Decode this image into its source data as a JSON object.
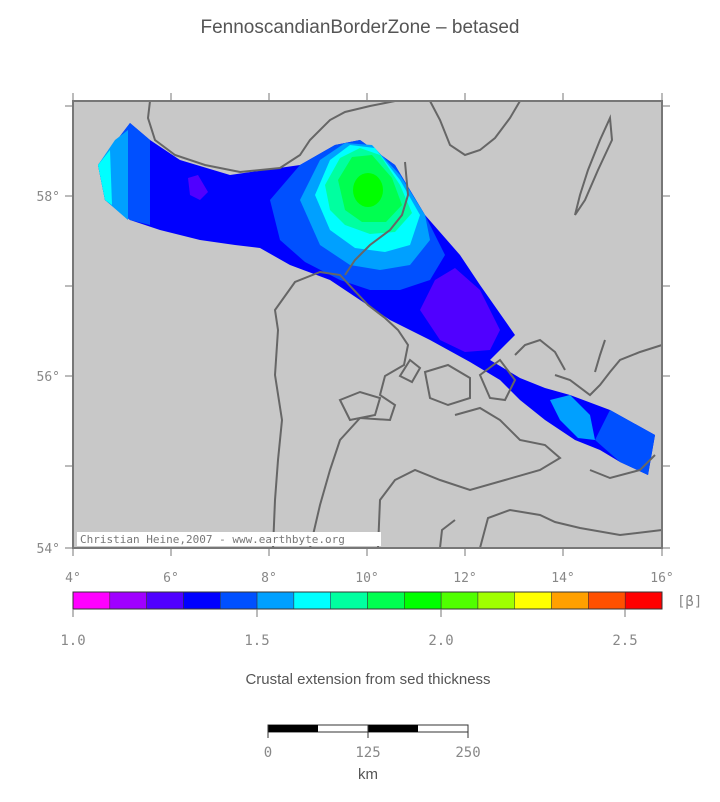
{
  "title": "FennoscandianBorderZone – betased",
  "subtitle": "Crustal extension from sed thickness",
  "map": {
    "lat_labels": [
      "58°",
      "56°",
      "54°"
    ],
    "lon_labels": [
      "4°",
      "6°",
      "8°",
      "10°",
      "12°",
      "14°",
      "16°"
    ],
    "credit": "Christian Heine,2007 - www.earthbyte.org",
    "background_color": "#c8c8c8",
    "coast_color": "#666666"
  },
  "colorbar": {
    "unit": "[β]",
    "tick_labels": [
      "1.0",
      "1.5",
      "2.0",
      "2.5"
    ],
    "colors": [
      "#ff00ff",
      "#a000ff",
      "#5000ff",
      "#0000ff",
      "#0050ff",
      "#00a0ff",
      "#00ffff",
      "#00ffa0",
      "#00ff50",
      "#00ff00",
      "#50ff00",
      "#a0ff00",
      "#ffff00",
      "#ffa000",
      "#ff5000",
      "#ff0000"
    ]
  },
  "scalebar": {
    "tick_labels": [
      "0",
      "125",
      "250"
    ],
    "unit": "km"
  }
}
